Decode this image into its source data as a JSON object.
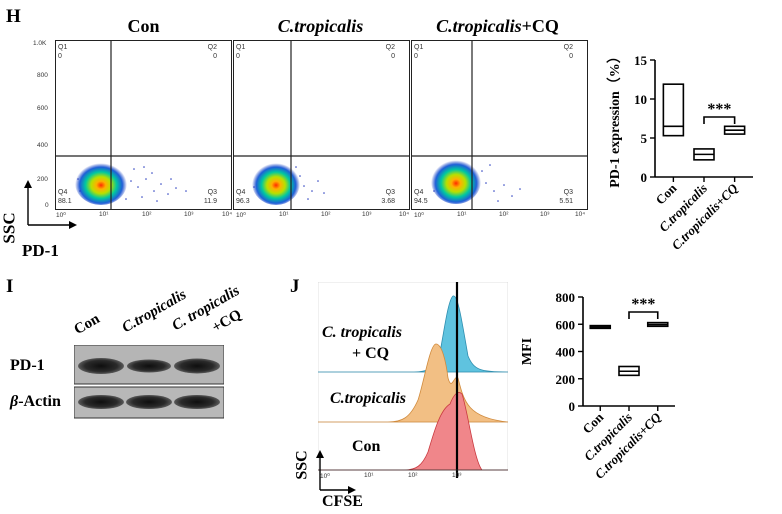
{
  "panel_h": {
    "letter": "H",
    "flow": {
      "ylabel": "SSC",
      "xlabel": "PD-1",
      "y_ticks": [
        "1.0K",
        "800",
        "600",
        "400",
        "200",
        "0"
      ],
      "x_ticks": [
        "10⁰",
        "10¹",
        "10²",
        "10³",
        "10⁴"
      ],
      "plots": [
        {
          "title": "Con",
          "italic": false,
          "Q1": "Q1",
          "Q2": "Q2",
          "Q3": "Q3",
          "Q4": "Q4",
          "q1_val": "0",
          "q2_val": "0",
          "q3_val": "11.9",
          "q4_val": "88.1"
        },
        {
          "title": "C.tropicalis",
          "italic": true,
          "Q1": "Q1",
          "Q2": "Q2",
          "Q3": "Q3",
          "Q4": "Q4",
          "q1_val": "0",
          "q2_val": "0",
          "q3_val": "3.68",
          "q4_val": "96.3"
        },
        {
          "title_italic": "C.tropicalis",
          "title_plain": "+CQ",
          "italic": true,
          "Q1": "Q1",
          "Q2": "Q2",
          "Q3": "Q3",
          "Q4": "Q4",
          "q1_val": "0",
          "q2_val": "0",
          "q3_val": "5.51",
          "q4_val": "94.5"
        }
      ]
    }
  },
  "panel_i": {
    "letter": "I",
    "lanes": [
      "Con",
      "C.tropicalis",
      "C. tropicalis",
      "+CQ"
    ],
    "row1_label": "PD-1",
    "row2_label_greek": "β",
    "row2_label_rest": "-Actin"
  },
  "panel_j": {
    "letter": "J",
    "ylabel": "SSC",
    "xlabel": "CFSE",
    "x_ticks": [
      "10⁰",
      "10¹",
      "10²",
      "10³"
    ],
    "sample_labels": [
      "C. tropicalis",
      "+ CQ",
      "C.tropicalis",
      "Con"
    ]
  },
  "chart_data": [
    {
      "type": "bar",
      "style": "floating box (min to max, line at mean)",
      "categories": [
        "Con",
        "C.tropicalis",
        "C.tropicalis+CQ"
      ],
      "series": [
        {
          "name": "min",
          "values": [
            5.3,
            2.2,
            5.5
          ]
        },
        {
          "name": "mean",
          "values": [
            6.5,
            2.9,
            6.0
          ]
        },
        {
          "name": "max",
          "values": [
            11.9,
            3.6,
            6.5
          ]
        }
      ],
      "ylabel": "PD-1 expression（%）",
      "xlabel": "",
      "ylim": [
        0,
        15
      ],
      "yticks": [
        "0",
        "5",
        "10",
        "15"
      ],
      "annotation": "***"
    },
    {
      "type": "bar",
      "style": "floating box (min to max, line at mean)",
      "categories": [
        "Con",
        "C.tropicalis",
        "C.tropicalis+CQ"
      ],
      "series": [
        {
          "name": "min",
          "values": [
            570,
            225,
            585
          ]
        },
        {
          "name": "mean",
          "values": [
            580,
            255,
            598
          ]
        },
        {
          "name": "max",
          "values": [
            590,
            290,
            612
          ]
        }
      ],
      "ylabel": "MFI",
      "xlabel": "",
      "ylim": [
        0,
        800
      ],
      "yticks": [
        "0",
        "200",
        "400",
        "600",
        "800"
      ],
      "annotation": "***"
    }
  ]
}
